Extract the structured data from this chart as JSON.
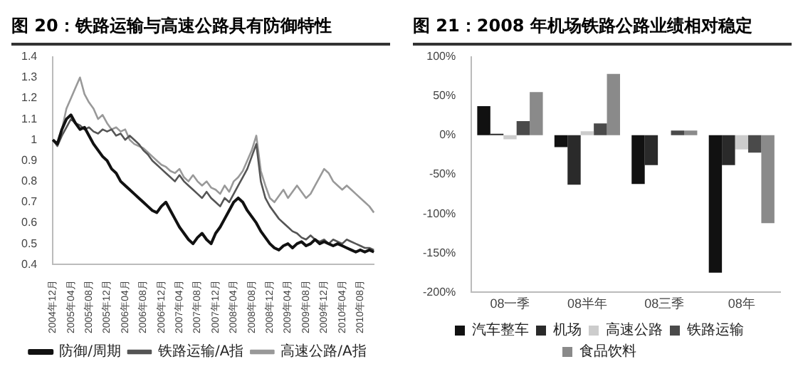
{
  "chart_data": [
    {
      "type": "line",
      "title": "图 20：铁路运输与高速公路具有防御特性",
      "categories": [
        "2004年12月",
        null,
        null,
        null,
        "2005年04月",
        null,
        null,
        null,
        "2005年08月",
        null,
        null,
        null,
        "2005年12月",
        null,
        null,
        null,
        "2006年04月",
        null,
        null,
        null,
        "2006年08月",
        null,
        null,
        null,
        "2006年12月",
        null,
        null,
        null,
        "2007年04月",
        null,
        null,
        null,
        "2007年08月",
        null,
        null,
        null,
        "2007年12月",
        null,
        null,
        null,
        "2008年04月",
        null,
        null,
        null,
        "2008年08月",
        null,
        null,
        null,
        "2008年12月",
        null,
        null,
        null,
        "2009年04月",
        null,
        null,
        null,
        "2009年08月",
        null,
        null,
        null,
        "2009年12月",
        null,
        null,
        null,
        "2010年04月",
        null,
        null,
        null,
        "2010年08月",
        null,
        null,
        null
      ],
      "series": [
        {
          "name": "防御/周期",
          "color": "#111111",
          "values": [
            1.0,
            0.98,
            1.05,
            1.1,
            1.12,
            1.08,
            1.05,
            1.06,
            1.02,
            0.98,
            0.95,
            0.92,
            0.9,
            0.86,
            0.84,
            0.8,
            0.78,
            0.76,
            0.74,
            0.72,
            0.7,
            0.68,
            0.66,
            0.65,
            0.68,
            0.7,
            0.66,
            0.62,
            0.58,
            0.55,
            0.52,
            0.5,
            0.53,
            0.55,
            0.52,
            0.5,
            0.55,
            0.58,
            0.62,
            0.66,
            0.7,
            0.72,
            0.7,
            0.66,
            0.63,
            0.6,
            0.56,
            0.53,
            0.5,
            0.48,
            0.47,
            0.49,
            0.5,
            0.48,
            0.5,
            0.51,
            0.49,
            0.5,
            0.52,
            0.5,
            0.51,
            0.5,
            0.49,
            0.5,
            0.49,
            0.48,
            0.47,
            0.46,
            0.47,
            0.46,
            0.47,
            0.46
          ]
        },
        {
          "name": "铁路运输/A指",
          "color": "#555555",
          "values": [
            1.0,
            0.97,
            1.02,
            1.06,
            1.1,
            1.08,
            1.07,
            1.05,
            1.06,
            1.04,
            1.03,
            1.05,
            1.04,
            1.05,
            1.02,
            1.03,
            1.0,
            1.02,
            1.0,
            0.98,
            0.95,
            0.93,
            0.9,
            0.88,
            0.86,
            0.84,
            0.82,
            0.8,
            0.83,
            0.8,
            0.78,
            0.76,
            0.74,
            0.72,
            0.75,
            0.72,
            0.7,
            0.68,
            0.72,
            0.7,
            0.74,
            0.78,
            0.82,
            0.86,
            0.92,
            0.98,
            0.8,
            0.72,
            0.68,
            0.65,
            0.62,
            0.6,
            0.58,
            0.56,
            0.55,
            0.53,
            0.52,
            0.54,
            0.52,
            0.51,
            0.52,
            0.5,
            0.52,
            0.51,
            0.5,
            0.52,
            0.51,
            0.5,
            0.49,
            0.48,
            0.48,
            0.47
          ]
        },
        {
          "name": "高速公路/A指",
          "color": "#999999",
          "values": [
            1.0,
            0.98,
            1.05,
            1.15,
            1.2,
            1.25,
            1.3,
            1.22,
            1.18,
            1.15,
            1.1,
            1.12,
            1.08,
            1.05,
            1.06,
            1.04,
            1.05,
            1.0,
            0.98,
            0.97,
            0.96,
            0.94,
            0.92,
            0.9,
            0.88,
            0.87,
            0.85,
            0.84,
            0.86,
            0.82,
            0.8,
            0.83,
            0.8,
            0.78,
            0.8,
            0.77,
            0.76,
            0.74,
            0.78,
            0.75,
            0.8,
            0.82,
            0.85,
            0.9,
            0.95,
            1.02,
            0.85,
            0.78,
            0.72,
            0.7,
            0.73,
            0.76,
            0.72,
            0.75,
            0.78,
            0.75,
            0.72,
            0.74,
            0.78,
            0.82,
            0.86,
            0.84,
            0.8,
            0.78,
            0.76,
            0.78,
            0.76,
            0.74,
            0.72,
            0.7,
            0.68,
            0.65
          ]
        }
      ],
      "ylim": [
        0.4,
        1.4
      ],
      "yticks": [
        0.4,
        0.5,
        0.6,
        0.7,
        0.8,
        0.9,
        1.0,
        1.1,
        1.2,
        1.3,
        1.4
      ],
      "grid": false,
      "legend": "bottom",
      "marker": "none"
    },
    {
      "type": "bar",
      "title": "图 21：2008 年机场铁路公路业绩相对稳定",
      "categories": [
        "08一季",
        "08半年",
        "08三季",
        "08年"
      ],
      "series": [
        {
          "name": "汽车整车",
          "color": "#111111",
          "values": [
            37,
            -15,
            -62,
            -175
          ]
        },
        {
          "name": "机场",
          "color": "#2a2a2a",
          "values": [
            2,
            -63,
            -38,
            -38
          ]
        },
        {
          "name": "高速公路",
          "color": "#cccccc",
          "values": [
            -5,
            5,
            null,
            -18
          ]
        },
        {
          "name": "铁路运输",
          "color": "#4a4a4a",
          "values": [
            18,
            15,
            6,
            -22
          ]
        },
        {
          "name": "食品饮料",
          "color": "#8a8a8a",
          "values": [
            55,
            78,
            6,
            -112
          ]
        }
      ],
      "ylim": [
        -200,
        100
      ],
      "yticks": [
        {
          "value": -200,
          "label": "-200%"
        },
        {
          "value": -150,
          "label": "-150%"
        },
        {
          "value": -100,
          "label": "-100%"
        },
        {
          "value": -50,
          "label": "-50%"
        },
        {
          "value": 0,
          "label": "0%"
        },
        {
          "value": 50,
          "label": "50%"
        },
        {
          "value": 100,
          "label": "100%"
        }
      ],
      "grid": false,
      "legend": "bottom"
    }
  ]
}
